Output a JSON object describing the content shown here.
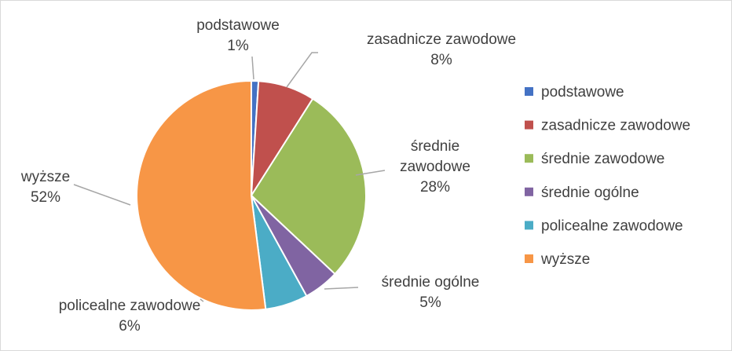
{
  "chart_data": {
    "type": "pie",
    "title": "",
    "categories": [
      "podstawowe",
      "zasadnicze zawodowe",
      "średnie zawodowe",
      "średnie ogólne",
      "policealne zawodowe",
      "wyższe"
    ],
    "values": [
      1,
      8,
      28,
      5,
      6,
      52
    ],
    "value_labels": [
      "1%",
      "8%",
      "28%",
      "5%",
      "6%",
      "52%"
    ],
    "colors": [
      "#4472C4",
      "#C0504D",
      "#9BBB59",
      "#8064A2",
      "#4BACC6",
      "#F79646"
    ],
    "legend": "right",
    "data_labels": [
      {
        "lines": [
          "podstawowe",
          "1%"
        ]
      },
      {
        "lines": [
          "zasadnicze zawodowe",
          "8%"
        ]
      },
      {
        "lines": [
          "średnie",
          "zawodowe",
          "28%"
        ]
      },
      {
        "lines": [
          "średnie ogólne",
          "5%"
        ]
      },
      {
        "lines": [
          "policealne zawodowe",
          "6%"
        ]
      },
      {
        "lines": [
          "wyższe",
          "52%"
        ]
      }
    ]
  }
}
